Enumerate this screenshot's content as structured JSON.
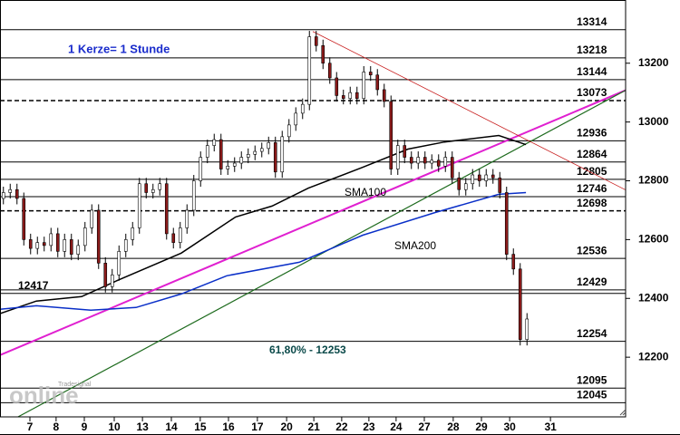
{
  "chart_data": {
    "type": "candlestick",
    "title": "1 Kerze= 1 Stunde",
    "xlim": [
      0,
      184
    ],
    "ylim": [
      11997,
      13415
    ],
    "yticks": [
      12200,
      12400,
      12600,
      12800,
      13000,
      13200
    ],
    "xticks": [
      {
        "value": 8.8,
        "label": "7"
      },
      {
        "value": 16.5,
        "label": "8"
      },
      {
        "value": 24.8,
        "label": "9"
      },
      {
        "value": 33.6,
        "label": "10"
      },
      {
        "value": 41.9,
        "label": "13"
      },
      {
        "value": 50.4,
        "label": "14"
      },
      {
        "value": 58.9,
        "label": "15"
      },
      {
        "value": 67.2,
        "label": "16"
      },
      {
        "value": 75.7,
        "label": "17"
      },
      {
        "value": 84.3,
        "label": "20"
      },
      {
        "value": 92.3,
        "label": "21"
      },
      {
        "value": 100.5,
        "label": "22"
      },
      {
        "value": 108.5,
        "label": "23"
      },
      {
        "value": 116.5,
        "label": "24"
      },
      {
        "value": 124.8,
        "label": "27"
      },
      {
        "value": 133.3,
        "label": "28"
      },
      {
        "value": 141.6,
        "label": "29"
      },
      {
        "value": 149.9,
        "label": "30"
      },
      {
        "value": 161.9,
        "label": "31"
      }
    ],
    "candles": {
      "up_color": "#ffffff",
      "down_color": "#8b1a1a",
      "x": [
        1,
        3,
        5,
        7,
        9,
        11,
        13,
        15,
        17,
        19,
        21,
        23,
        25,
        27,
        29,
        31,
        33,
        35,
        37,
        39,
        41,
        43,
        45,
        47,
        49,
        51,
        53,
        55,
        57,
        59,
        61,
        63,
        65,
        67,
        69,
        71,
        73,
        75,
        77,
        79,
        81,
        83,
        85,
        87,
        89,
        91,
        93,
        95,
        97,
        99,
        101,
        103,
        105,
        107,
        109,
        111,
        113,
        115,
        117,
        119,
        121,
        123,
        125,
        127,
        129,
        131,
        133,
        135,
        137,
        139,
        141,
        143,
        145,
        147,
        149,
        151,
        153,
        155
      ],
      "open": [
        12740,
        12760,
        12770,
        12740,
        12600,
        12570,
        12590,
        12580,
        12620,
        12560,
        12600,
        12550,
        12580,
        12640,
        12700,
        12520,
        12440,
        12480,
        12560,
        12600,
        12640,
        12790,
        12760,
        12770,
        12790,
        12620,
        12590,
        12640,
        12700,
        12800,
        12880,
        12920,
        12940,
        12840,
        12850,
        12860,
        12880,
        12890,
        12900,
        12910,
        12930,
        12830,
        12950,
        12990,
        13030,
        13060,
        13290,
        13260,
        13200,
        13150,
        13090,
        13080,
        13100,
        13080,
        13170,
        13160,
        13110,
        13070,
        12840,
        12920,
        12880,
        12860,
        12880,
        12860,
        12870,
        12850,
        12880,
        12810,
        12770,
        12790,
        12820,
        12800,
        12820,
        12810,
        12760,
        12550,
        12500,
        12260
      ],
      "high": [
        12780,
        12790,
        12790,
        12760,
        12620,
        12610,
        12610,
        12640,
        12640,
        12620,
        12620,
        12600,
        12660,
        12720,
        12720,
        12540,
        12500,
        12580,
        12620,
        12660,
        12810,
        12810,
        12790,
        12810,
        12810,
        12640,
        12660,
        12720,
        12820,
        12900,
        12940,
        12960,
        12960,
        12870,
        12880,
        12900,
        12910,
        12920,
        12930,
        12950,
        12950,
        12970,
        13010,
        13050,
        13080,
        13310,
        13310,
        13280,
        13220,
        13170,
        13110,
        13120,
        13120,
        13190,
        13190,
        13180,
        13130,
        13090,
        12940,
        12940,
        12900,
        12900,
        12900,
        12890,
        12890,
        12900,
        12900,
        12830,
        12810,
        12840,
        12840,
        12840,
        12840,
        12830,
        12780,
        12570,
        12520,
        12350
      ],
      "low": [
        12720,
        12740,
        12720,
        12580,
        12550,
        12550,
        12560,
        12560,
        12540,
        12540,
        12530,
        12530,
        12560,
        12620,
        12500,
        12420,
        12420,
        12460,
        12540,
        12580,
        12620,
        12740,
        12740,
        12750,
        12600,
        12570,
        12570,
        12620,
        12680,
        12780,
        12860,
        12900,
        12820,
        12820,
        12830,
        12840,
        12860,
        12870,
        12880,
        12890,
        12810,
        12810,
        12930,
        12970,
        13010,
        13040,
        13240,
        13180,
        13130,
        13070,
        13060,
        13060,
        13060,
        13060,
        13140,
        13090,
        13050,
        12820,
        12820,
        12860,
        12840,
        12840,
        12840,
        12840,
        12830,
        12830,
        12790,
        12750,
        12750,
        12770,
        12780,
        12780,
        12790,
        12740,
        12530,
        12480,
        12240,
        12240
      ],
      "close": [
        12760,
        12770,
        12740,
        12600,
        12570,
        12590,
        12580,
        12620,
        12560,
        12600,
        12550,
        12580,
        12640,
        12700,
        12520,
        12440,
        12480,
        12560,
        12600,
        12640,
        12790,
        12760,
        12770,
        12790,
        12620,
        12590,
        12640,
        12700,
        12800,
        12880,
        12920,
        12940,
        12840,
        12850,
        12860,
        12880,
        12890,
        12900,
        12910,
        12930,
        12830,
        12950,
        12990,
        13030,
        13060,
        13290,
        13260,
        13200,
        13150,
        13090,
        13080,
        13100,
        13080,
        13170,
        13160,
        13110,
        13070,
        12840,
        12920,
        12880,
        12860,
        12880,
        12860,
        12870,
        12850,
        12880,
        12810,
        12770,
        12790,
        12820,
        12800,
        12820,
        12810,
        12760,
        12550,
        12500,
        12260,
        12330
      ]
    },
    "series": [
      {
        "name": "SMA100",
        "color": "#000000",
        "x": [
          0,
          10.7,
          24,
          34.7,
          53.3,
          69.3,
          80,
          90.7,
          106.7,
          120,
          130.7,
          146.7,
          154.7
        ],
        "values": [
          12348,
          12391,
          12406,
          12462,
          12554,
          12677,
          12714,
          12775,
          12846,
          12908,
          12932,
          12954,
          12923
        ]
      },
      {
        "name": "SMA200",
        "color": "#0a2fc8",
        "x": [
          0,
          10.7,
          26.7,
          40,
          53.3,
          66.7,
          88,
          106.7,
          128,
          146.7,
          154.7
        ],
        "values": [
          12363,
          12375,
          12360,
          12369,
          12415,
          12477,
          12523,
          12615,
          12692,
          12754,
          12760
        ]
      }
    ],
    "trendlines": [
      {
        "color": "#e020d0",
        "x": [
          0,
          184
        ],
        "values": [
          12207,
          13108
        ]
      },
      {
        "color": "#1e6b1e",
        "x": [
          5.3,
          184
        ],
        "values": [
          11997,
          13108
        ]
      },
      {
        "color": "#c81e1e",
        "x": [
          92,
          184
        ],
        "values": [
          13308,
          12769
        ]
      }
    ],
    "levels": [
      13314,
      13218,
      13144,
      13073,
      12936,
      12864,
      12805,
      12746,
      12698,
      12536,
      12429,
      12254,
      12095,
      12045
    ],
    "dashed_levels": [
      13073,
      12698
    ],
    "left_level": 12417,
    "annotation": "61,80% - 12253",
    "logo": [
      "Tradesignal",
      "online"
    ]
  }
}
